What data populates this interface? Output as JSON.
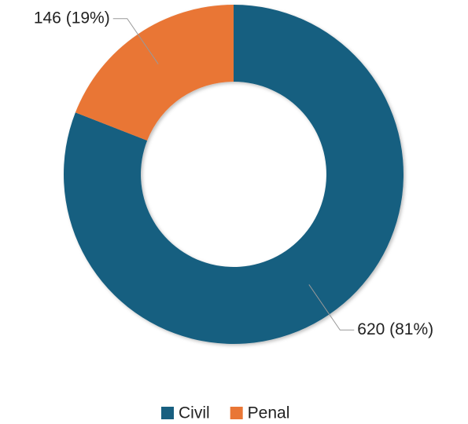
{
  "chart_data": {
    "type": "donut",
    "categories": [
      "Civil",
      "Penal"
    ],
    "values": [
      620,
      146
    ],
    "value_labels": [
      "620 (81%)",
      "146 (19%)"
    ],
    "colors": [
      "#185f80",
      "#e97635"
    ],
    "legend": "bottom"
  }
}
